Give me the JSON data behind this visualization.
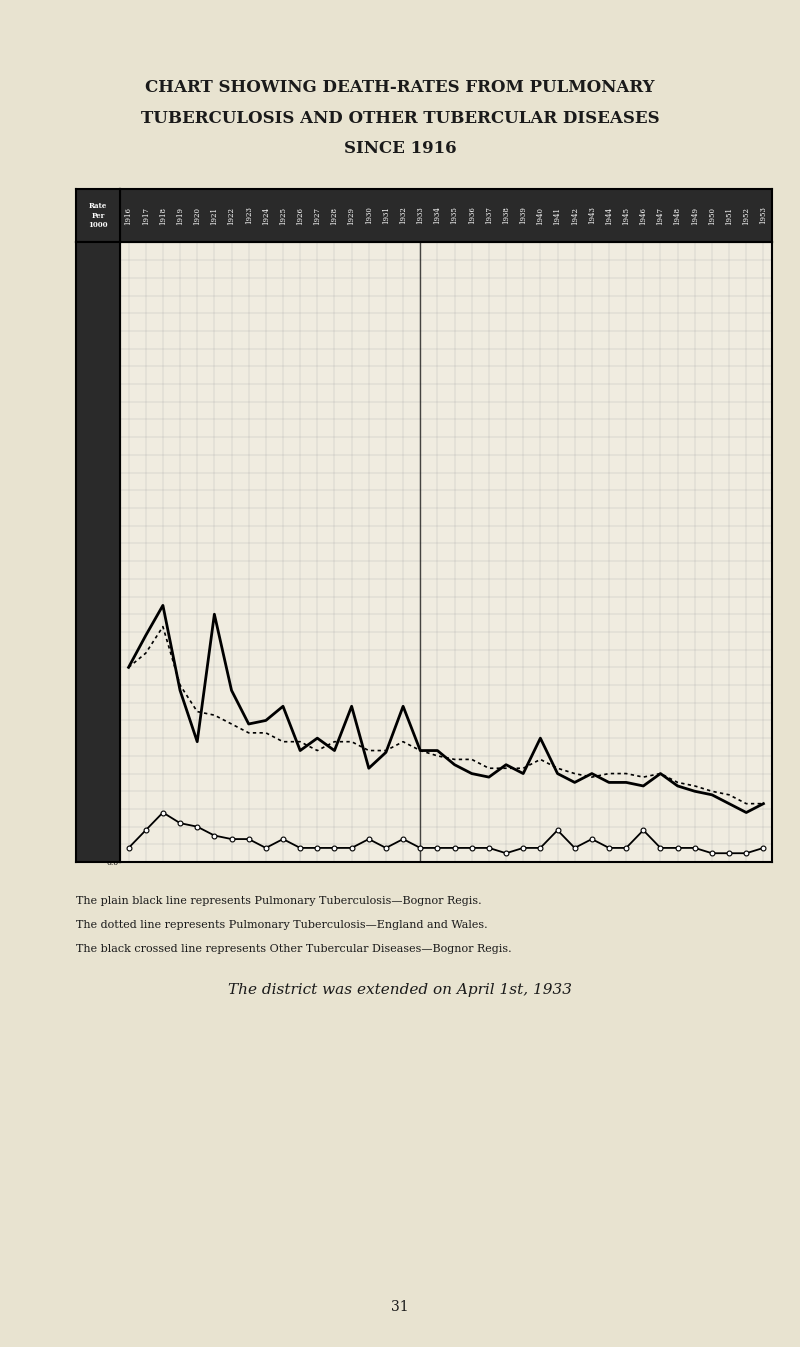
{
  "title_line1": "CHART SHOWING DEATH-RATES FROM PULMONARY",
  "title_line2": "TUBERCULOSIS AND OTHER TUBERCULAR DISEASES",
  "title_line3": "SINCE 1916",
  "paper_color": "#e8e3d0",
  "chart_bg": "#f0ece0",
  "header_bg": "#1a1a1a",
  "ylabel_text": "Rate\nPer\n1000",
  "ylim": [
    0.0,
    3.5
  ],
  "years": [
    1916,
    1917,
    1918,
    1919,
    1920,
    1921,
    1922,
    1923,
    1924,
    1925,
    1926,
    1927,
    1928,
    1929,
    1930,
    1931,
    1932,
    1933,
    1934,
    1935,
    1936,
    1937,
    1938,
    1939,
    1940,
    1941,
    1942,
    1943,
    1944,
    1945,
    1946,
    1947,
    1948,
    1949,
    1950,
    1951,
    1952,
    1953
  ],
  "bognor_pulm": [
    1.1,
    1.28,
    1.45,
    0.97,
    0.68,
    1.4,
    0.97,
    0.78,
    0.8,
    0.88,
    0.63,
    0.7,
    0.63,
    0.88,
    0.53,
    0.62,
    0.88,
    0.63,
    0.63,
    0.55,
    0.5,
    0.48,
    0.55,
    0.5,
    0.7,
    0.5,
    0.45,
    0.5,
    0.45,
    0.45,
    0.43,
    0.5,
    0.43,
    0.4,
    0.38,
    0.33,
    0.28,
    0.33
  ],
  "england_pulm": [
    1.1,
    1.18,
    1.33,
    1.0,
    0.85,
    0.83,
    0.78,
    0.73,
    0.73,
    0.68,
    0.68,
    0.63,
    0.68,
    0.68,
    0.63,
    0.63,
    0.68,
    0.63,
    0.6,
    0.58,
    0.58,
    0.53,
    0.53,
    0.53,
    0.58,
    0.53,
    0.5,
    0.48,
    0.5,
    0.5,
    0.48,
    0.5,
    0.45,
    0.43,
    0.4,
    0.38,
    0.33,
    0.33
  ],
  "bognor_other": [
    0.08,
    0.18,
    0.28,
    0.22,
    0.2,
    0.15,
    0.13,
    0.13,
    0.08,
    0.13,
    0.08,
    0.08,
    0.08,
    0.08,
    0.13,
    0.08,
    0.13,
    0.08,
    0.08,
    0.08,
    0.08,
    0.08,
    0.05,
    0.08,
    0.08,
    0.18,
    0.08,
    0.13,
    0.08,
    0.08,
    0.18,
    0.08,
    0.08,
    0.08,
    0.05,
    0.05,
    0.05,
    0.08
  ],
  "note1": "The plain black line represents Pulmonary Tuberculosis—Bognor Regis.",
  "note2": "The dotted line represents Pulmonary Tuberculosis—England and Wales.",
  "note3": "The black crossed line represents Other Tubercular Diseases—Bognor Regis.",
  "note4": "The district was extended on April 1st, 1933",
  "page_num": "31"
}
